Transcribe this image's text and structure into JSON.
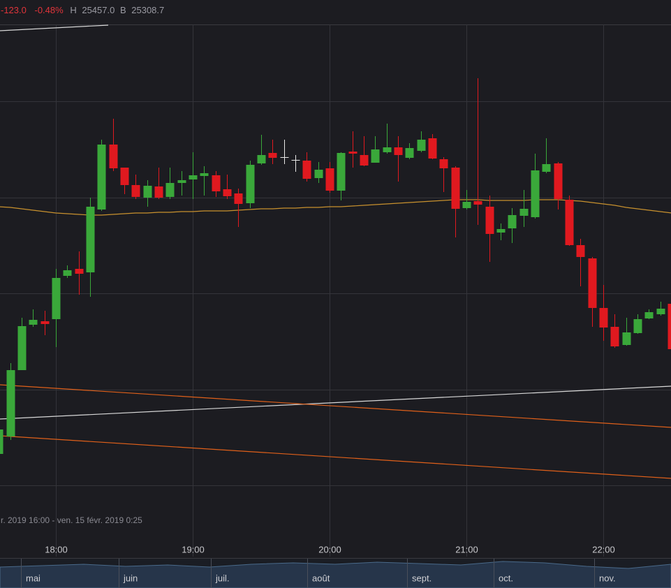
{
  "header": {
    "change": "-123.0",
    "change_pct": "-0.48%",
    "high_label": "H",
    "high": "25457.0",
    "low_label": "B",
    "low": "25308.7"
  },
  "range_caption": "r. 2019 16:00 - ven. 15 févr. 2019 0:25",
  "navigator": {
    "months": [
      "mai",
      "juin",
      "juil.",
      "août",
      "sept.",
      "oct.",
      "nov."
    ]
  },
  "chart_data": {
    "type": "candlestick",
    "categories": [
      null,
      null,
      null,
      null,
      null,
      "18:00",
      null,
      null,
      null,
      null,
      null,
      null,
      null,
      null,
      null,
      null,
      null,
      "19:00",
      null,
      null,
      null,
      null,
      null,
      null,
      null,
      null,
      null,
      null,
      null,
      "20:00",
      null,
      null,
      null,
      null,
      null,
      null,
      null,
      null,
      null,
      null,
      null,
      "21:00",
      null,
      null,
      null,
      null,
      null,
      null,
      null,
      null,
      null,
      null,
      null,
      "22:00",
      null,
      null,
      null,
      null,
      null,
      null
    ],
    "open": [
      25240,
      25250,
      25288,
      25314,
      25316,
      25317.2,
      25342,
      25346,
      25344,
      25380,
      25417.2,
      25404,
      25394,
      25386.8,
      25393.2,
      25387.2,
      25395.2,
      25397.2,
      25399.2,
      25399.6,
      25391.6,
      25389.2,
      25383.6,
      25406.4,
      25412.4,
      25410,
      25408.4,
      25408,
      25398,
      25403.6,
      25390.8,
      25413.2,
      25411.2,
      25406.8,
      25412.8,
      25415.6,
      25409.6,
      25413.6,
      25420.8,
      25408.8,
      25404,
      25380.8,
      25384.8,
      25381.6,
      25366.8,
      25369.2,
      25376.4,
      25375.6,
      25401.6,
      25406.4,
      25385.6,
      25359.6,
      25352,
      25323.6,
      25312.8,
      25302.4,
      25309.2,
      25317.6,
      25320,
      25326
    ],
    "high": [
      25258,
      25292,
      25318,
      25322.8,
      25322,
      25346,
      25348,
      25356,
      25386.8,
      25420,
      25432,
      25404,
      25400,
      25396.8,
      25404,
      25404,
      25402,
      25412.8,
      25404.8,
      25402,
      25400,
      25392,
      25408,
      25422.8,
      25420,
      25420,
      25411.2,
      25412.8,
      25407.2,
      25407.2,
      25412.8,
      25424.8,
      25422,
      25422,
      25429.2,
      25422,
      25418,
      25424.8,
      25423.2,
      25410,
      25404.8,
      25391.2,
      25455.2,
      25388,
      25372,
      25380.8,
      25391.2,
      25412,
      25420.8,
      25407.2,
      25388,
      25363.2,
      25352.8,
      25336.8,
      25320,
      25318,
      25320,
      25322.8,
      25327.2,
      25327.2
    ],
    "low": [
      25239.2,
      25248,
      25288,
      25312.8,
      25308,
      25301.2,
      25340.8,
      25331.2,
      25330,
      25379.2,
      25402,
      25388.8,
      25386,
      25381.6,
      25386,
      25386,
      25388,
      25386,
      25388,
      25387.2,
      25386,
      25370,
      25380.8,
      25405.6,
      25406,
      25406,
      25401.6,
      25396,
      25395.2,
      25389.6,
      25385.2,
      25404,
      25404.8,
      25406.8,
      25412,
      25396,
      25408.8,
      25412.8,
      25408.8,
      25390,
      25364,
      25380,
      25371.2,
      25350,
      25362.4,
      25360.8,
      25370,
      25374.8,
      25400.8,
      25380,
      25359.2,
      25336,
      25312.8,
      25304.8,
      25300.8,
      25302,
      25308.8,
      25317.2,
      25319.2,
      25300
    ],
    "close": [
      25254,
      25288,
      25313.2,
      25316.8,
      25314.4,
      25340.8,
      25345.2,
      25343.2,
      25381.6,
      25417.2,
      25403.6,
      25394,
      25387.2,
      25393.6,
      25386.8,
      25395.2,
      25396.8,
      25399.6,
      25400.8,
      25390.4,
      25387.6,
      25383.2,
      25405.6,
      25411.2,
      25409.6,
      25410,
      25408.4,
      25397.6,
      25402.8,
      25390.8,
      25412.4,
      25412,
      25405.2,
      25414.4,
      25415.6,
      25411.2,
      25415.2,
      25420,
      25409.2,
      25403.6,
      25380.4,
      25384.4,
      25382.8,
      25366,
      25368.8,
      25376.8,
      25380.4,
      25402.4,
      25406,
      25386,
      25359.6,
      25352.8,
      25323.6,
      25312.4,
      25301.6,
      25309.6,
      25317.2,
      25321.2,
      25323.2,
      25300
    ],
    "up_color": "#3aa83a",
    "down_color": "#e0191f",
    "flat_color": "#e8e8e8",
    "ylim": [
      25181.2,
      25486
    ],
    "ygrid": [
      25442,
      25387,
      25332,
      25277,
      25222
    ],
    "grid": true,
    "moving_average": {
      "color": "#c8912e",
      "values": [
        25381.6,
        25381.2,
        25380.4,
        25379.6,
        25378.8,
        25378,
        25377.6,
        25377.2,
        25376.8,
        25376.8,
        25377.2,
        25377.6,
        25378,
        25378,
        25378.4,
        25378.4,
        25378.8,
        25378.8,
        25379.2,
        25379.2,
        25379.2,
        25379.6,
        25380,
        25380.4,
        25380.4,
        25380.8,
        25380.8,
        25381.2,
        25381.2,
        25381.6,
        25381.6,
        25382,
        25382.4,
        25382.8,
        25383.2,
        25383.6,
        25384,
        25384.4,
        25384.8,
        25385.2,
        25385.6,
        25385.6,
        25385.6,
        25385.2,
        25385.2,
        25385.2,
        25385.2,
        25385.6,
        25385.6,
        25385.6,
        25385.2,
        25384.8,
        25384,
        25383.2,
        25382.4,
        25381.2,
        25380.4,
        25379.6,
        25378.8,
        25378
      ]
    },
    "trendlines": [
      {
        "color": "#d8d8d8",
        "values": [
          25482.4,
          25485.6
        ]
      },
      {
        "color": "#d8d8d8",
        "values": [
          25260,
          25278.8
        ]
      },
      {
        "color": "#e0601a",
        "values": [
          25279.6,
          25255.2
        ]
      },
      {
        "color": "#e0601a",
        "values": [
          25250.4,
          25226
        ]
      }
    ]
  }
}
